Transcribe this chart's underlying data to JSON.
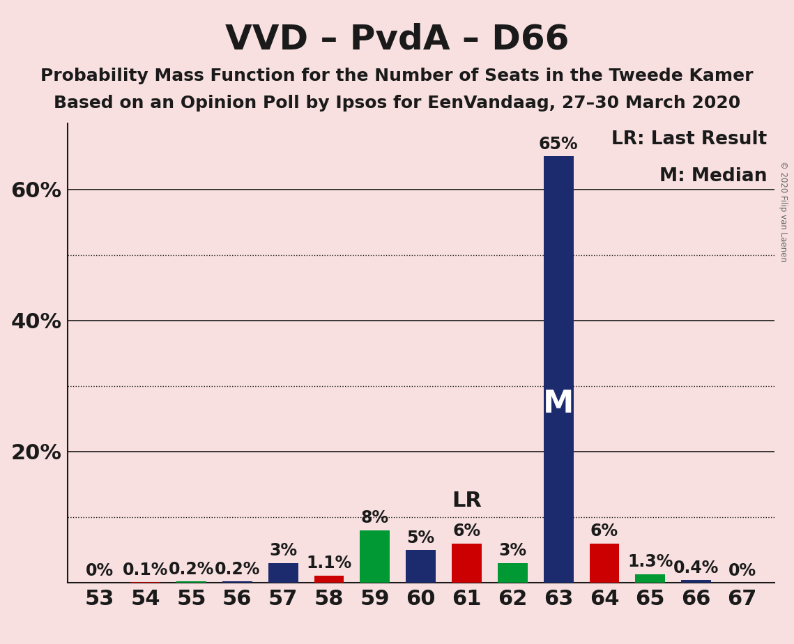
{
  "title": "VVD – PvdA – D66",
  "subtitle1": "Probability Mass Function for the Number of Seats in the Tweede Kamer",
  "subtitle2": "Based on an Opinion Poll by Ipsos for EenVandaag, 27–30 March 2020",
  "copyright": "© 2020 Filip van Laenen",
  "categories": [
    53,
    54,
    55,
    56,
    57,
    58,
    59,
    60,
    61,
    62,
    63,
    64,
    65,
    66,
    67
  ],
  "values": [
    0.0,
    0.1,
    0.2,
    0.2,
    3.0,
    1.1,
    8.0,
    5.0,
    6.0,
    3.0,
    65.0,
    6.0,
    1.3,
    0.4,
    0.0
  ],
  "labels": [
    "0%",
    "0.1%",
    "0.2%",
    "0.2%",
    "3%",
    "1.1%",
    "8%",
    "5%",
    "6%",
    "3%",
    "65%",
    "6%",
    "1.3%",
    "0.4%",
    "0%"
  ],
  "bar_colors": [
    "#1c2b6e",
    "#cc0000",
    "#009933",
    "#1c2b6e",
    "#1c2b6e",
    "#cc0000",
    "#009933",
    "#1c2b6e",
    "#cc0000",
    "#009933",
    "#1c2b6e",
    "#cc0000",
    "#009933",
    "#1c2b6e",
    "#cc0000"
  ],
  "lr_seat": 61,
  "median_seat": 63,
  "background_color": "#f8e0e0",
  "ylim": [
    0,
    70
  ],
  "dotted_yticks": [
    10,
    30,
    50
  ],
  "solid_yticks": [
    20,
    40,
    60
  ],
  "ytick_display": [
    20,
    40,
    60
  ],
  "ytick_labels": [
    "20%",
    "40%",
    "60%"
  ],
  "legend_lr": "LR: Last Result",
  "legend_m": "M: Median",
  "title_fontsize": 36,
  "subtitle_fontsize": 18,
  "tick_fontsize": 22,
  "bar_label_fontsize": 17,
  "legend_fontsize": 19,
  "lr_label_fontsize": 22,
  "m_label_fontsize": 32
}
